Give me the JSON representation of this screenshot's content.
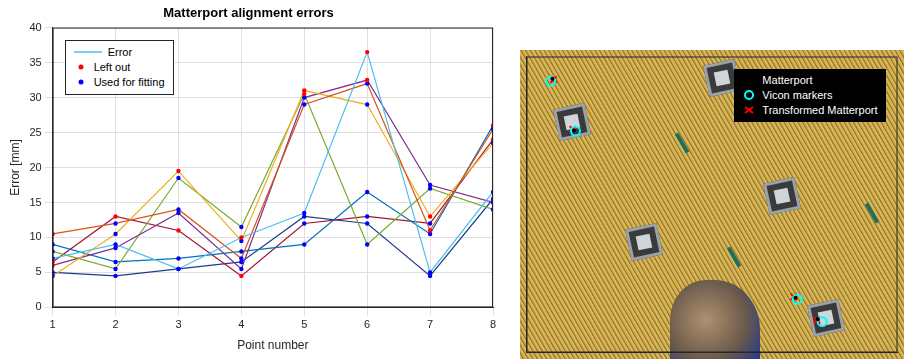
{
  "chart_data": [
    {
      "type": "line",
      "title": "Matterport alignment errors",
      "x_label": "Point number",
      "y_label": "Error [mm]",
      "x": [
        1,
        2,
        3,
        4,
        5,
        6,
        7,
        8
      ],
      "xlim": [
        1,
        8
      ],
      "xticks": [
        1,
        2,
        3,
        4,
        5,
        6,
        7,
        8
      ],
      "ylim": [
        0,
        40
      ],
      "yticks": [
        0,
        5,
        10,
        15,
        20,
        25,
        30,
        35,
        40
      ],
      "grid": true,
      "legend": "upper left",
      "series": [
        {
          "name": "Error",
          "type": "line",
          "line_style": "solid",
          "colors": [
            "#4DBEEE",
            "#D95319",
            "#EDB120",
            "#7E2F8E",
            "#77AC30",
            "#0072BD",
            "#A2142F",
            "#1F3C88"
          ],
          "lines": [
            [
              7,
              9,
              5.5,
              10,
              13.5,
              36.5,
              5,
              16.5
            ],
            [
              10.5,
              12,
              14,
              7,
              29,
              32,
              11,
              25.5
            ],
            [
              4.5,
              10.5,
              19.5,
              9.5,
              31,
              29,
              13,
              23.5
            ],
            [
              6,
              8.5,
              13.5,
              5.5,
              30,
              32.5,
              17.5,
              15
            ],
            [
              8,
              5.5,
              18.5,
              11.5,
              30.5,
              9,
              17,
              14
            ],
            [
              9,
              6.5,
              7,
              8,
              9,
              16.5,
              10.5,
              26
            ],
            [
              6.5,
              13,
              11,
              4.5,
              12,
              13,
              12,
              24
            ],
            [
              5,
              4.5,
              5.5,
              6.5,
              13,
              12,
              4.5,
              15.5
            ]
          ]
        },
        {
          "name": "Left out",
          "type": "scatter",
          "color": "#FF0000",
          "marker": "dot",
          "x": [
            1,
            1,
            1,
            2,
            3,
            3,
            4,
            4,
            5,
            5,
            6,
            6,
            7,
            7,
            8,
            8
          ],
          "values": [
            10.5,
            6,
            6.5,
            13,
            19.5,
            11,
            10,
            4.5,
            31,
            30.5,
            36.5,
            32.5,
            11,
            13,
            26,
            24
          ]
        },
        {
          "name": "Used for fitting",
          "type": "scatter",
          "color": "#0000FF",
          "marker": "dot",
          "x": [
            1,
            1,
            1,
            1,
            1,
            2,
            2,
            2,
            2,
            2,
            2,
            2,
            3,
            3,
            3,
            3,
            3,
            3,
            4,
            4,
            4,
            4,
            4,
            4,
            5,
            5,
            5,
            5,
            5,
            5,
            6,
            6,
            6,
            6,
            6,
            6,
            7,
            7,
            7,
            7,
            7,
            7,
            8,
            8,
            8,
            8,
            8,
            8
          ],
          "values": [
            7,
            4.5,
            8,
            9,
            5,
            9,
            12,
            10.5,
            8.5,
            5.5,
            6.5,
            4.5,
            5.5,
            14,
            13.5,
            18.5,
            7,
            5.5,
            7,
            9.5,
            5.5,
            11.5,
            8,
            6.5,
            13.5,
            29,
            30,
            9,
            12,
            13,
            32,
            29,
            9,
            16.5,
            13,
            12,
            5,
            17.5,
            17,
            10.5,
            12,
            4.5,
            16.5,
            25.5,
            23.5,
            15,
            14,
            15.5
          ]
        }
      ]
    },
    {
      "type": "scatter",
      "xlim": [
        0,
        100
      ],
      "ylim": [
        0,
        100
      ],
      "tick_labels": false,
      "grid": false,
      "legend": "upper right",
      "series": [
        {
          "name": "Matterport",
          "color": "#000000",
          "marker": "dot",
          "x": [
            7,
            12.8,
            72.5,
            78.5
          ],
          "values": [
            92.5,
            75,
            18.5,
            11.2
          ]
        },
        {
          "name": "Vicon markers",
          "color": "#00FFFF",
          "marker": "circle",
          "x": [
            6.5,
            13.2,
            73,
            79.7
          ],
          "values": [
            91.6,
            74.8,
            18,
            10.4
          ]
        },
        {
          "name": "Transformed Matterport",
          "color": "#FF0000",
          "marker": "x",
          "x": [
            7.3,
            12.5,
            72.1,
            78.3
          ],
          "values": [
            92.2,
            75.4,
            18.8,
            10.9
          ]
        }
      ]
    }
  ]
}
